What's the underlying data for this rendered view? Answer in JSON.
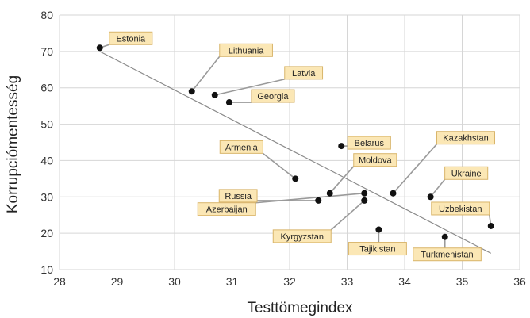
{
  "chart_data": {
    "type": "scatter",
    "xlabel": "Testtömegindex",
    "ylabel": "Korrupciómentesség",
    "xlim": [
      28,
      36
    ],
    "ylim": [
      10,
      80
    ],
    "x_ticks": [
      28,
      29,
      30,
      31,
      32,
      33,
      34,
      35,
      36
    ],
    "y_ticks": [
      10,
      20,
      30,
      40,
      50,
      60,
      70,
      80
    ],
    "grid": true,
    "points": [
      {
        "label": "Estonia",
        "x": 28.7,
        "y": 71
      },
      {
        "label": "Lithuania",
        "x": 30.3,
        "y": 59
      },
      {
        "label": "Latvia",
        "x": 30.7,
        "y": 58
      },
      {
        "label": "Georgia",
        "x": 30.95,
        "y": 56
      },
      {
        "label": "Belarus",
        "x": 32.9,
        "y": 44
      },
      {
        "label": "Armenia",
        "x": 32.1,
        "y": 35
      },
      {
        "label": "Moldova",
        "x": 32.7,
        "y": 31
      },
      {
        "label": "Russia",
        "x": 32.5,
        "y": 29
      },
      {
        "label": "Azerbaijan",
        "x": 33.3,
        "y": 31
      },
      {
        "label": "Kyrgyzstan",
        "x": 33.3,
        "y": 29
      },
      {
        "label": "Kazakhstan",
        "x": 33.8,
        "y": 31
      },
      {
        "label": "Ukraine",
        "x": 34.45,
        "y": 30
      },
      {
        "label": "Tajikistan",
        "x": 33.55,
        "y": 21
      },
      {
        "label": "Turkmenistan",
        "x": 34.7,
        "y": 19
      },
      {
        "label": "Uzbekistan",
        "x": 35.5,
        "y": 22
      }
    ],
    "trendline": {
      "x": [
        28.7,
        35.5
      ],
      "y": [
        70,
        14.5
      ]
    },
    "colors": {
      "point": "#111111",
      "label_fill": "#fbe7b5",
      "label_border": "#d9b56a",
      "grid": "#d6d6d6",
      "trend": "#8a8a8a"
    }
  }
}
